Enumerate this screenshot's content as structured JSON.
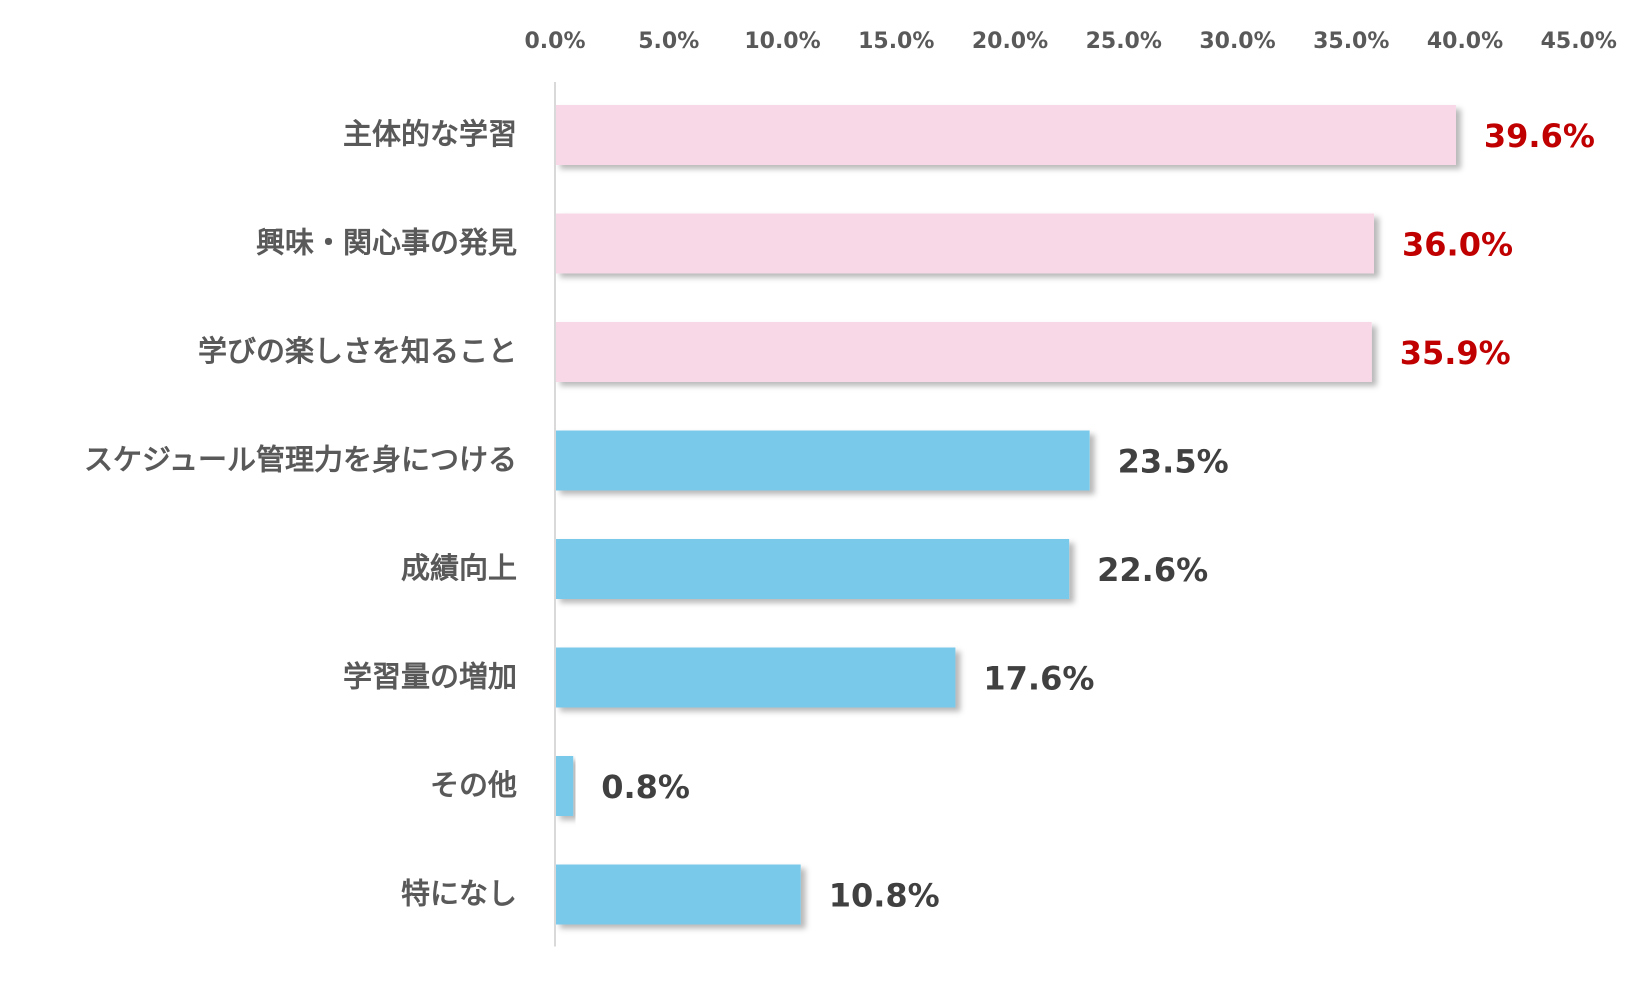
{
  "chart_data": {
    "type": "bar",
    "orientation": "horizontal",
    "title": "",
    "xlabel": "",
    "ylabel": "",
    "xlim": [
      0,
      45
    ],
    "x_ticks": [
      0,
      5,
      10,
      15,
      20,
      25,
      30,
      35,
      40,
      45
    ],
    "x_tick_labels": [
      "0.0%",
      "5.0%",
      "10.0%",
      "15.0%",
      "20.0%",
      "25.0%",
      "30.0%",
      "35.0%",
      "40.0%",
      "45.0%"
    ],
    "x_axis_position": "top",
    "grid": false,
    "legend": "none",
    "categories": [
      "主体的な学習",
      "興味・関心事の発見",
      "学びの楽しさを知ること",
      "スケジュール管理力を身につける",
      "成績向上",
      "学習量の増加",
      "その他",
      "特になし"
    ],
    "values": [
      39.6,
      36.0,
      35.9,
      23.5,
      22.6,
      17.6,
      0.8,
      10.8
    ],
    "value_labels": [
      "39.6%",
      "36.0%",
      "35.9%",
      "23.5%",
      "22.6%",
      "17.6%",
      "0.8%",
      "10.8%"
    ],
    "highlighted": [
      true,
      true,
      true,
      false,
      false,
      false,
      false,
      false
    ],
    "colors": {
      "highlight_bar": "#f8d8e7",
      "normal_bar": "#79c9ea",
      "highlight_label": "#c00000",
      "normal_label": "#404040",
      "category_label": "#595959",
      "tick_label": "#595959",
      "axis_line": "#d9d9d9"
    }
  }
}
